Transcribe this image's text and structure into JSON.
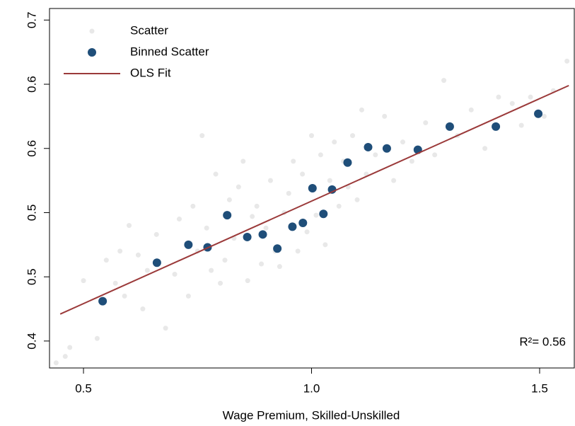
{
  "chart_data": {
    "type": "scatter",
    "xlabel": "Wage Premium, Skilled-Unskilled",
    "annotation": "R²= 0.56",
    "xlim": [
      0.4255,
      1.576
    ],
    "ylim": [
      0.379,
      0.659
    ],
    "xticks": [
      0.5,
      {
        "value": 1,
        "label": "1.0"
      },
      1.5
    ],
    "yticks": [
      0.4,
      {
        "value": 0.45,
        "label": "0.5"
      },
      {
        "value": 0.5,
        "label": "0.5"
      },
      {
        "value": 0.55,
        "label": "0.6"
      },
      {
        "value": 0.6,
        "label": "0.6"
      },
      {
        "value": 0.65,
        "label": "0.7"
      }
    ],
    "legend": "upper-left",
    "series": [
      {
        "name": "Scatter",
        "type": "scatter",
        "color": "#e8e8e8",
        "x": [
          0.44,
          0.46,
          0.47,
          0.53,
          0.55,
          0.57,
          0.59,
          0.6,
          0.62,
          0.64,
          0.66,
          0.68,
          0.7,
          0.71,
          0.73,
          0.74,
          0.75,
          0.77,
          0.78,
          0.79,
          0.8,
          0.81,
          0.82,
          0.83,
          0.84,
          0.86,
          0.87,
          0.88,
          0.89,
          0.9,
          0.91,
          0.92,
          0.93,
          0.94,
          0.95,
          0.96,
          0.97,
          0.98,
          0.99,
          1.0,
          1.01,
          1.02,
          1.03,
          1.04,
          1.05,
          1.06,
          1.07,
          1.08,
          1.09,
          1.1,
          1.11,
          1.12,
          1.14,
          1.16,
          1.18,
          1.2,
          1.22,
          1.25,
          1.27,
          1.29,
          1.32,
          1.35,
          1.38,
          1.41,
          1.44,
          1.46,
          1.48,
          1.51,
          1.53,
          1.56,
          0.5,
          0.58,
          0.76,
          0.85,
          0.63
        ],
        "values": [
          0.383,
          0.388,
          0.395,
          0.402,
          0.463,
          0.445,
          0.435,
          0.49,
          0.467,
          0.455,
          0.483,
          0.41,
          0.452,
          0.495,
          0.435,
          0.505,
          0.47,
          0.488,
          0.455,
          0.53,
          0.445,
          0.463,
          0.51,
          0.48,
          0.52,
          0.447,
          0.497,
          0.505,
          0.46,
          0.488,
          0.525,
          0.47,
          0.458,
          0.5,
          0.515,
          0.54,
          0.47,
          0.53,
          0.485,
          0.56,
          0.498,
          0.545,
          0.475,
          0.525,
          0.555,
          0.505,
          0.54,
          0.52,
          0.56,
          0.51,
          0.58,
          0.53,
          0.545,
          0.575,
          0.525,
          0.555,
          0.54,
          0.57,
          0.545,
          0.603,
          0.56,
          0.58,
          0.55,
          0.59,
          0.585,
          0.568,
          0.59,
          0.575,
          0.595,
          0.618,
          0.447,
          0.47,
          0.56,
          0.54,
          0.425
        ]
      },
      {
        "name": "Binned Scatter",
        "type": "scatter",
        "color": "#1f4e79",
        "x": [
          0.542,
          0.661,
          0.73,
          0.772,
          0.815,
          0.859,
          0.893,
          0.925,
          0.958,
          0.981,
          1.002,
          1.026,
          1.045,
          1.079,
          1.124,
          1.165,
          1.233,
          1.303,
          1.404,
          1.497
        ],
        "values": [
          0.431,
          0.461,
          0.475,
          0.473,
          0.498,
          0.481,
          0.483,
          0.472,
          0.489,
          0.492,
          0.519,
          0.499,
          0.518,
          0.539,
          0.551,
          0.55,
          0.549,
          0.567,
          0.567,
          0.577
        ]
      },
      {
        "name": "OLS Fit",
        "type": "line",
        "color": "#9b3a3a",
        "x": [
          0.449,
          1.564
        ],
        "values": [
          0.421,
          0.599
        ]
      }
    ]
  }
}
